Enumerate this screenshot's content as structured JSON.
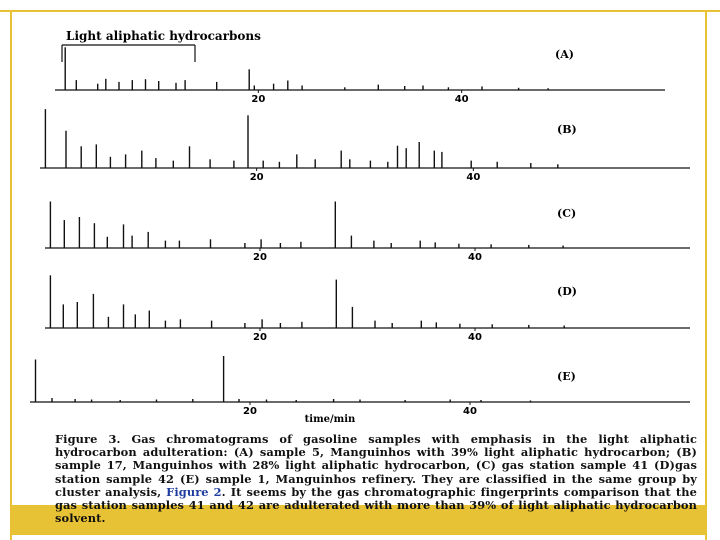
{
  "chart_data": {
    "type": "line",
    "title": "",
    "xlabel": "time/min",
    "ylabel": "",
    "annotation": "Light aliphatic hydrocarbons",
    "xlim": [
      0,
      60
    ],
    "panels": [
      {
        "name": "(A)",
        "ticks": [
          20,
          40
        ],
        "peaks": [
          [
            1.0,
            0.95
          ],
          [
            2.1,
            0.22
          ],
          [
            4.2,
            0.14
          ],
          [
            5.0,
            0.25
          ],
          [
            6.3,
            0.18
          ],
          [
            7.6,
            0.22
          ],
          [
            8.9,
            0.24
          ],
          [
            10.2,
            0.2
          ],
          [
            11.9,
            0.16
          ],
          [
            12.8,
            0.22
          ],
          [
            15.9,
            0.18
          ],
          [
            19.1,
            0.46
          ],
          [
            19.6,
            0.1
          ],
          [
            21.5,
            0.14
          ],
          [
            22.9,
            0.21
          ],
          [
            24.3,
            0.1
          ],
          [
            28.5,
            0.06
          ],
          [
            31.8,
            0.12
          ],
          [
            34.4,
            0.09
          ],
          [
            36.2,
            0.1
          ],
          [
            38.7,
            0.06
          ],
          [
            42.0,
            0.08
          ],
          [
            45.6,
            0.05
          ],
          [
            48.5,
            0.04
          ]
        ]
      },
      {
        "name": "(B)",
        "ticks": [
          20,
          40
        ],
        "peaks": [
          [
            0.5,
            0.95
          ],
          [
            2.4,
            0.6
          ],
          [
            3.8,
            0.35
          ],
          [
            5.2,
            0.38
          ],
          [
            6.5,
            0.18
          ],
          [
            7.9,
            0.22
          ],
          [
            9.4,
            0.28
          ],
          [
            10.7,
            0.16
          ],
          [
            12.3,
            0.12
          ],
          [
            13.8,
            0.35
          ],
          [
            15.7,
            0.14
          ],
          [
            17.9,
            0.12
          ],
          [
            19.2,
            0.85
          ],
          [
            20.6,
            0.12
          ],
          [
            22.1,
            0.1
          ],
          [
            23.7,
            0.22
          ],
          [
            25.4,
            0.14
          ],
          [
            27.8,
            0.28
          ],
          [
            28.6,
            0.14
          ],
          [
            30.5,
            0.12
          ],
          [
            32.1,
            0.1
          ],
          [
            33.0,
            0.36
          ],
          [
            33.8,
            0.32
          ],
          [
            35.0,
            0.42
          ],
          [
            36.4,
            0.28
          ],
          [
            37.1,
            0.26
          ],
          [
            39.8,
            0.12
          ],
          [
            42.2,
            0.1
          ],
          [
            45.3,
            0.08
          ],
          [
            47.8,
            0.06
          ]
        ]
      },
      {
        "name": "(C)",
        "ticks": [
          20,
          40
        ],
        "peaks": [
          [
            0.5,
            0.75
          ],
          [
            1.8,
            0.45
          ],
          [
            3.2,
            0.5
          ],
          [
            4.6,
            0.4
          ],
          [
            5.8,
            0.18
          ],
          [
            7.3,
            0.38
          ],
          [
            8.1,
            0.2
          ],
          [
            9.6,
            0.26
          ],
          [
            11.2,
            0.12
          ],
          [
            12.5,
            0.12
          ],
          [
            15.4,
            0.14
          ],
          [
            18.6,
            0.08
          ],
          [
            20.1,
            0.14
          ],
          [
            21.9,
            0.08
          ],
          [
            23.8,
            0.1
          ],
          [
            27.0,
            0.75
          ],
          [
            28.5,
            0.2
          ],
          [
            30.6,
            0.12
          ],
          [
            32.2,
            0.08
          ],
          [
            34.9,
            0.12
          ],
          [
            36.3,
            0.09
          ],
          [
            38.5,
            0.07
          ],
          [
            41.5,
            0.06
          ],
          [
            45.0,
            0.05
          ],
          [
            48.2,
            0.04
          ]
        ]
      },
      {
        "name": "(D)",
        "ticks": [
          20,
          40
        ],
        "peaks": [
          [
            0.5,
            0.85
          ],
          [
            1.7,
            0.38
          ],
          [
            3.0,
            0.42
          ],
          [
            4.5,
            0.55
          ],
          [
            5.9,
            0.18
          ],
          [
            7.3,
            0.38
          ],
          [
            8.4,
            0.22
          ],
          [
            9.7,
            0.28
          ],
          [
            11.2,
            0.12
          ],
          [
            12.6,
            0.14
          ],
          [
            15.5,
            0.12
          ],
          [
            18.6,
            0.08
          ],
          [
            20.2,
            0.14
          ],
          [
            21.9,
            0.08
          ],
          [
            23.9,
            0.1
          ],
          [
            27.1,
            0.78
          ],
          [
            28.6,
            0.34
          ],
          [
            30.7,
            0.12
          ],
          [
            32.3,
            0.08
          ],
          [
            35.0,
            0.12
          ],
          [
            36.4,
            0.09
          ],
          [
            38.6,
            0.07
          ],
          [
            41.6,
            0.06
          ],
          [
            45.0,
            0.05
          ],
          [
            48.3,
            0.04
          ]
        ]
      },
      {
        "name": "(E)",
        "ticks": [
          20,
          40
        ],
        "peaks": [
          [
            0.5,
            0.85
          ],
          [
            2.0,
            0.08
          ],
          [
            4.1,
            0.06
          ],
          [
            5.6,
            0.05
          ],
          [
            8.2,
            0.04
          ],
          [
            11.5,
            0.05
          ],
          [
            14.8,
            0.06
          ],
          [
            17.6,
            0.92
          ],
          [
            19.0,
            0.06
          ],
          [
            21.5,
            0.05
          ],
          [
            24.2,
            0.04
          ],
          [
            27.6,
            0.06
          ],
          [
            30.0,
            0.05
          ],
          [
            34.1,
            0.04
          ],
          [
            38.2,
            0.05
          ],
          [
            41.0,
            0.04
          ],
          [
            45.5,
            0.03
          ]
        ]
      }
    ]
  },
  "caption": {
    "fig_label": "Figure 3.",
    "text_a": " Gas chromatograms of gasoline samples with emphasis in the light aliphatic hydrocarbon adulteration: (A) sample 5, Manguinhos with 39% light aliphatic hydrocarbon; (B) sample 17, Manguinhos with 28% light aliphatic hydrocarbon, (C) gas station sample 41 (D)gas station sample 42 (E) sample 1, Manguinhos refinery. They are classified in the same group by cluster analysis, ",
    "ref": "Figure 2",
    "text_b": ". It seems by the gas chromatographic fingerprints comparison that the gas station samples 41 and 42 are adulterated with more than 39% of light aliphatic hydrocarbon solvent."
  },
  "colors": {
    "border": "#e8c235",
    "trace": "#111111",
    "ref_link": "#1f3da0"
  }
}
